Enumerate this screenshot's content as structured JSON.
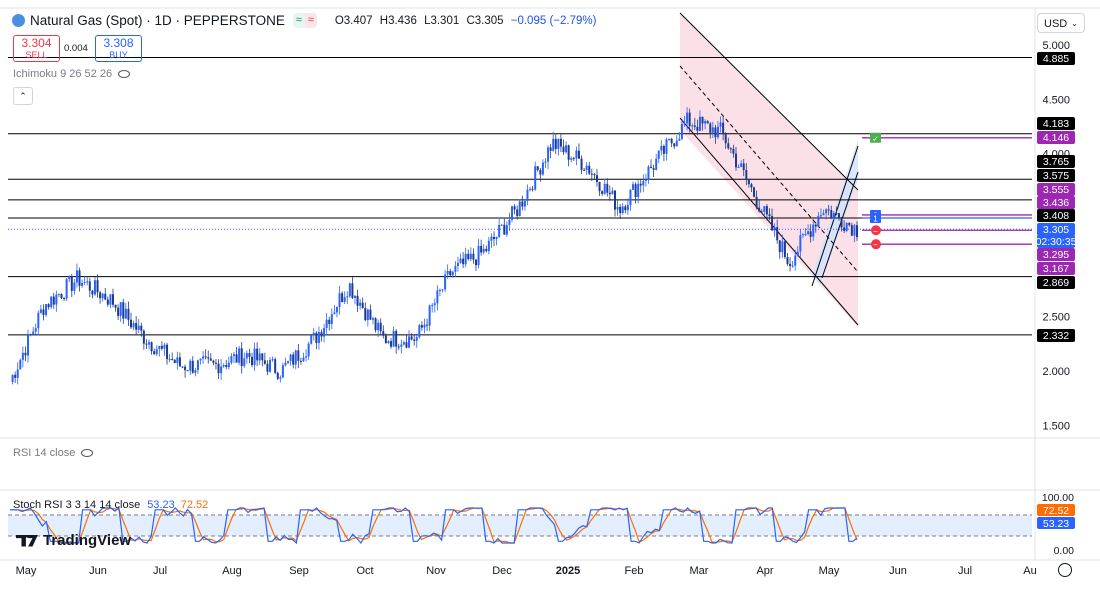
{
  "header": {
    "symbol": "Natural Gas (Spot) · 1D · PEPPERSTONE",
    "open": "O3.407",
    "high": "H3.436",
    "low": "L3.301",
    "close": "C3.305",
    "change": "−0.095 (−2.79%)",
    "sell_price": "3.304",
    "sell_label": "SELL",
    "spread": "0.004",
    "buy_price": "3.308",
    "buy_label": "BUY",
    "indicator_ichimoku": "Ichimoku 9 26 52 26",
    "indicator_rsi": "RSI 14 close",
    "indicator_stoch_name": "Stoch RSI 3 3 14 14 close",
    "stoch_k_value": "53.23",
    "stoch_d_value": "72.52",
    "currency": "USD",
    "watermark": "TradingView"
  },
  "colors": {
    "up": "#2962ff",
    "down": "#1e3a8a",
    "level_line": "#000000",
    "purple": "#9c27b0",
    "channel_fill": "#f8c8d4",
    "blue_fill": "#cfe2ff",
    "stoch_k": "#2962ff",
    "stoch_d": "#ff6d00",
    "stoch_band": "#e3efff",
    "current_price": "#2962ff"
  },
  "chart_data": {
    "type": "candlestick",
    "x_labels": [
      "May",
      "Jun",
      "Jul",
      "Aug",
      "Sep",
      "Oct",
      "Nov",
      "Dec",
      "2025",
      "Feb",
      "Mar",
      "Apr",
      "May",
      "Jun",
      "Jul",
      "Au"
    ],
    "y_ticks": [
      "5.000",
      "4.500",
      "4.000",
      "2.500",
      "2.000",
      "1.500"
    ],
    "ylim": [
      1.4,
      5.1
    ],
    "monthly_close": [
      {
        "m": "May",
        "v": 1.9
      },
      {
        "m": "May",
        "v": 2.6
      },
      {
        "m": "Jun",
        "v": 2.85
      },
      {
        "m": "Jun",
        "v": 2.65
      },
      {
        "m": "Jul",
        "v": 2.3
      },
      {
        "m": "Jul",
        "v": 2.05
      },
      {
        "m": "Aug",
        "v": 2.05
      },
      {
        "m": "Aug",
        "v": 2.15
      },
      {
        "m": "Sep",
        "v": 2.0
      },
      {
        "m": "Sep",
        "v": 2.3
      },
      {
        "m": "Oct",
        "v": 2.8
      },
      {
        "m": "Oct",
        "v": 2.3
      },
      {
        "m": "Nov",
        "v": 2.3
      },
      {
        "m": "Nov",
        "v": 2.9
      },
      {
        "m": "Dec",
        "v": 3.1
      },
      {
        "m": "Dec",
        "v": 3.5
      },
      {
        "m": "2025",
        "v": 4.1
      },
      {
        "m": "2025",
        "v": 3.9
      },
      {
        "m": "Feb",
        "v": 3.5
      },
      {
        "m": "Feb",
        "v": 3.9
      },
      {
        "m": "Mar",
        "v": 4.3
      },
      {
        "m": "Mar",
        "v": 4.2
      },
      {
        "m": "Apr",
        "v": 3.6
      },
      {
        "m": "Apr",
        "v": 3.0
      },
      {
        "m": "May",
        "v": 3.5
      },
      {
        "m": "May",
        "v": 3.305
      }
    ],
    "horizontal_levels": [
      4.885,
      4.183,
      3.765,
      3.575,
      3.408,
      2.869,
      2.332
    ],
    "price_labels": [
      {
        "value": "4.885",
        "color": "#000000"
      },
      {
        "value": "4.183",
        "color": "#000000"
      },
      {
        "value": "4.146",
        "color": "#9c27b0"
      },
      {
        "value": "3.765",
        "color": "#000000"
      },
      {
        "value": "3.575",
        "color": "#000000"
      },
      {
        "value": "3.555",
        "color": "#9c27b0"
      },
      {
        "value": "3.436",
        "color": "#9c27b0"
      },
      {
        "value": "3.408",
        "color": "#000000"
      },
      {
        "value": "3.305",
        "color": "#2962ff"
      },
      {
        "value": "02:30:35",
        "color": "#2962ff"
      },
      {
        "value": "3.295",
        "color": "#9c27b0"
      },
      {
        "value": "3.167",
        "color": "#9c27b0"
      },
      {
        "value": "2.869",
        "color": "#000000"
      },
      {
        "value": "2.332",
        "color": "#000000"
      }
    ],
    "trade_markers": [
      {
        "price": 4.146,
        "label": "✓",
        "color": "#4caf50"
      },
      {
        "price": 3.436,
        "label": "2",
        "color": "#2962ff"
      },
      {
        "price": 3.408,
        "label": "1",
        "color": "#2962ff"
      },
      {
        "price": 3.295,
        "label": "−",
        "color": "#f23645"
      },
      {
        "price": 3.167,
        "label": "−",
        "color": "#f23645"
      }
    ],
    "stoch": {
      "axis_labels": [
        "100.00",
        "0.00"
      ],
      "current_k": "53.23",
      "current_d": "72.52"
    }
  }
}
